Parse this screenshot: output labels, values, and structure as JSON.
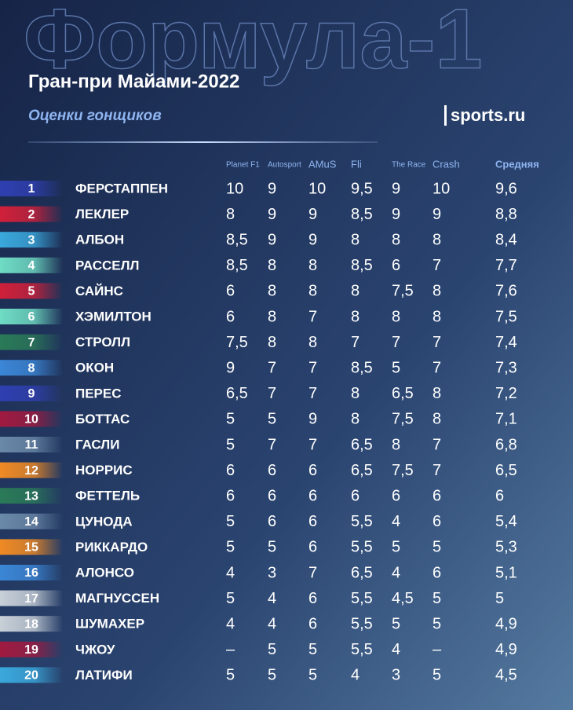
{
  "header": {
    "watermark": "Формула-1",
    "title": "Гран-при Майами-2022",
    "subtitle": "Оценки гонщиков",
    "logo": "sports.ru"
  },
  "table": {
    "columns": [
      "Planet F1",
      "Autosport",
      "AMuS",
      "Fli",
      "The Race",
      "Crash",
      "Средняя"
    ],
    "rows": [
      {
        "position": "1",
        "name": "ФЕРСТАППЕН",
        "color": "#2f3fb0",
        "scores": [
          "10",
          "9",
          "10",
          "9,5",
          "9",
          "10",
          "9,6"
        ]
      },
      {
        "position": "2",
        "name": "ЛЕКЛЕР",
        "color": "#d0203a",
        "scores": [
          "8",
          "9",
          "9",
          "8,5",
          "9",
          "9",
          "8,8"
        ]
      },
      {
        "position": "3",
        "name": "АЛБОН",
        "color": "#3aa8dc",
        "scores": [
          "8,5",
          "9",
          "9",
          "8",
          "8",
          "8",
          "8,4"
        ]
      },
      {
        "position": "4",
        "name": "РАССЕЛЛ",
        "color": "#6fdcc4",
        "scores": [
          "8,5",
          "8",
          "8",
          "8,5",
          "6",
          "7",
          "7,7"
        ]
      },
      {
        "position": "5",
        "name": "САЙНС",
        "color": "#d0203a",
        "scores": [
          "6",
          "8",
          "8",
          "8",
          "7,5",
          "8",
          "7,6"
        ]
      },
      {
        "position": "6",
        "name": "ХЭМИЛТОН",
        "color": "#6fdcc4",
        "scores": [
          "6",
          "8",
          "7",
          "8",
          "8",
          "8",
          "7,5"
        ]
      },
      {
        "position": "7",
        "name": "СТРОЛЛ",
        "color": "#2a7a58",
        "scores": [
          "7,5",
          "8",
          "8",
          "7",
          "7",
          "7",
          "7,4"
        ]
      },
      {
        "position": "8",
        "name": "ОКОН",
        "color": "#3b86d6",
        "scores": [
          "9",
          "7",
          "7",
          "8,5",
          "5",
          "7",
          "7,3"
        ]
      },
      {
        "position": "9",
        "name": "ПЕРЕС",
        "color": "#2f3fb0",
        "scores": [
          "6,5",
          "7",
          "7",
          "8",
          "6,5",
          "8",
          "7,2"
        ]
      },
      {
        "position": "10",
        "name": "БОТТАС",
        "color": "#a01a40",
        "scores": [
          "5",
          "5",
          "9",
          "8",
          "7,5",
          "8",
          "7,1"
        ]
      },
      {
        "position": "11",
        "name": "ГАСЛИ",
        "color": "#6a88a8",
        "scores": [
          "5",
          "7",
          "7",
          "6,5",
          "8",
          "7",
          "6,8"
        ]
      },
      {
        "position": "12",
        "name": "НОРРИС",
        "color": "#f08a24",
        "scores": [
          "6",
          "6",
          "6",
          "6,5",
          "7,5",
          "7",
          "6,5"
        ]
      },
      {
        "position": "13",
        "name": "ФЕТТЕЛЬ",
        "color": "#2a7a58",
        "scores": [
          "6",
          "6",
          "6",
          "6",
          "6",
          "6",
          "6"
        ]
      },
      {
        "position": "14",
        "name": "ЦУНОДА",
        "color": "#6a88a8",
        "scores": [
          "5",
          "6",
          "6",
          "5,5",
          "4",
          "6",
          "5,4"
        ]
      },
      {
        "position": "15",
        "name": "РИККАРДО",
        "color": "#f08a24",
        "scores": [
          "5",
          "5",
          "6",
          "5,5",
          "5",
          "5",
          "5,3"
        ]
      },
      {
        "position": "16",
        "name": "АЛОНСО",
        "color": "#3b86d6",
        "scores": [
          "4",
          "3",
          "7",
          "6,5",
          "4",
          "6",
          "5,1"
        ]
      },
      {
        "position": "17",
        "name": "МАГНУССЕН",
        "color": "#c8d0d8",
        "scores": [
          "5",
          "4",
          "6",
          "5,5",
          "4,5",
          "5",
          "5"
        ]
      },
      {
        "position": "18",
        "name": "ШУМАХЕР",
        "color": "#c8d0d8",
        "scores": [
          "4",
          "4",
          "6",
          "5,5",
          "5",
          "5",
          "4,9"
        ]
      },
      {
        "position": "19",
        "name": "ЧЖОУ",
        "color": "#a01a40",
        "scores": [
          "–",
          "5",
          "5",
          "5,5",
          "4",
          "–",
          "4,9"
        ]
      },
      {
        "position": "20",
        "name": "ЛАТИФИ",
        "color": "#3aa8dc",
        "scores": [
          "5",
          "5",
          "5",
          "4",
          "3",
          "5",
          "4,5"
        ]
      }
    ]
  }
}
